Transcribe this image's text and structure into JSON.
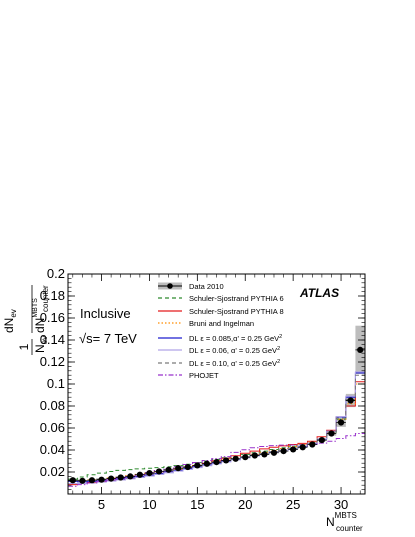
{
  "chart_data": {
    "type": "line",
    "xlabel_main": "N",
    "xlabel_sup": "MBTS",
    "xlabel_sub": "counter",
    "ylabel": {
      "frac1_num": "1",
      "frac1_den_main": "N",
      "frac1_den_sub": "ev",
      "frac2_num_main": "dN",
      "frac2_num_sub": "ev",
      "frac2_den_main": "dN",
      "frac2_den_sup": "MBTS",
      "frac2_den_sub": "counter"
    },
    "xlim": [
      1.5,
      32.5
    ],
    "ylim": [
      0,
      0.2
    ],
    "xticks": [
      5,
      10,
      15,
      20,
      25,
      30
    ],
    "xtick_labels": [
      "5",
      "10",
      "15",
      "20",
      "25",
      "30"
    ],
    "yticks": [
      0.02,
      0.04,
      0.06,
      0.08,
      0.1,
      0.12,
      0.14,
      0.16,
      0.18,
      0.2
    ],
    "ytick_labels": [
      "0.02",
      "0.04",
      "0.06",
      "0.08",
      "0.1",
      "0.12",
      "0.14",
      "0.16",
      "0.18",
      "0.2"
    ],
    "annotations": {
      "inclusive": "Inclusive",
      "sqrt": "√s",
      "energy": "= 7 TeV",
      "experiment": "ATLAS"
    },
    "legend_position": "top-right",
    "x": [
      2,
      3,
      4,
      5,
      6,
      7,
      8,
      9,
      10,
      11,
      12,
      13,
      14,
      15,
      16,
      17,
      18,
      19,
      20,
      21,
      22,
      23,
      24,
      25,
      26,
      27,
      28,
      29,
      30,
      31,
      32
    ],
    "data": {
      "name": "Data 2010",
      "color": "#000000",
      "values": [
        0.0125,
        0.012,
        0.0125,
        0.013,
        0.014,
        0.015,
        0.016,
        0.0175,
        0.019,
        0.0205,
        0.022,
        0.0235,
        0.0245,
        0.026,
        0.0275,
        0.029,
        0.0305,
        0.032,
        0.0335,
        0.035,
        0.036,
        0.0375,
        0.039,
        0.0405,
        0.0425,
        0.045,
        0.049,
        0.055,
        0.065,
        0.085,
        0.131
      ],
      "band": [
        0,
        0,
        0,
        0,
        0,
        0,
        0,
        0,
        0,
        0,
        0,
        0,
        0,
        0,
        0,
        0,
        0,
        0,
        0,
        0,
        0,
        0,
        0,
        0,
        0,
        0,
        0.001,
        0.002,
        0.004,
        0.006,
        0.022
      ]
    },
    "series": [
      {
        "name": "Schuler-Sjostrand PYTHIA 6",
        "color": "#2e8b2e",
        "dash": "4,3",
        "values": [
          0.0135,
          0.0155,
          0.0175,
          0.019,
          0.0205,
          0.0215,
          0.0222,
          0.0228,
          0.0234,
          0.024,
          0.0248,
          0.0258,
          0.027,
          0.0285,
          0.03,
          0.0315,
          0.033,
          0.0345,
          0.036,
          0.0375,
          0.039,
          0.0405,
          0.042,
          0.0435,
          0.045,
          0.047,
          0.05,
          0.056,
          0.068,
          0.085,
          0.1
        ]
      },
      {
        "name": "Schuler-Sjostrand PYTHIA 8",
        "color": "#e41a1c",
        "dash": "",
        "values": [
          0.0085,
          0.0095,
          0.0105,
          0.0115,
          0.0125,
          0.0135,
          0.0145,
          0.016,
          0.0175,
          0.019,
          0.0205,
          0.022,
          0.0238,
          0.0258,
          0.028,
          0.0302,
          0.0325,
          0.0348,
          0.037,
          0.039,
          0.041,
          0.0425,
          0.0438,
          0.045,
          0.046,
          0.048,
          0.052,
          0.058,
          0.07,
          0.08,
          0.102
        ]
      },
      {
        "name": "Bruni and Ingelman",
        "color": "#ff8c00",
        "dash": "1.5,2",
        "values": [
          0.0115,
          0.012,
          0.0128,
          0.0136,
          0.0145,
          0.0155,
          0.0166,
          0.0178,
          0.019,
          0.0203,
          0.0216,
          0.023,
          0.0245,
          0.026,
          0.0276,
          0.0292,
          0.0308,
          0.0325,
          0.0342,
          0.036,
          0.0378,
          0.0396,
          0.0414,
          0.0432,
          0.045,
          0.0472,
          0.0505,
          0.0565,
          0.068,
          0.082,
          0.1
        ]
      },
      {
        "name": "DL ε = 0.085,α' = 0.25 GeV",
        "color": "#1f1fcf",
        "dash": "",
        "values": [
          0.0115,
          0.011,
          0.0115,
          0.012,
          0.0128,
          0.0137,
          0.0148,
          0.016,
          0.0173,
          0.0187,
          0.0202,
          0.0217,
          0.0232,
          0.0248,
          0.0265,
          0.0282,
          0.03,
          0.0318,
          0.0335,
          0.0352,
          0.0368,
          0.0384,
          0.04,
          0.0416,
          0.0432,
          0.046,
          0.05,
          0.057,
          0.07,
          0.088,
          0.11
        ]
      },
      {
        "name": "DL ε = 0.06, α' = 0.25 GeV",
        "color": "#b0a3e6",
        "dash": "",
        "values": [
          0.0095,
          0.0095,
          0.01,
          0.0108,
          0.0117,
          0.0127,
          0.0138,
          0.015,
          0.0163,
          0.0177,
          0.0192,
          0.0208,
          0.0224,
          0.024,
          0.0257,
          0.0274,
          0.0292,
          0.031,
          0.0328,
          0.0346,
          0.0364,
          0.0382,
          0.04,
          0.0418,
          0.0436,
          0.0462,
          0.0502,
          0.0572,
          0.0705,
          0.089,
          0.111
        ]
      },
      {
        "name": "DL ε = 0.10, α' = 0.25 GeV",
        "color": "#7a7a7a",
        "dash": "4,3",
        "values": [
          0.0125,
          0.0125,
          0.013,
          0.0136,
          0.0144,
          0.0153,
          0.0163,
          0.0174,
          0.0186,
          0.0199,
          0.0213,
          0.0227,
          0.0242,
          0.0257,
          0.0273,
          0.0289,
          0.0305,
          0.0322,
          0.0338,
          0.0354,
          0.037,
          0.0386,
          0.0402,
          0.0418,
          0.0434,
          0.046,
          0.0498,
          0.0565,
          0.069,
          0.086,
          0.108
        ]
      },
      {
        "name": "PHOJET",
        "color": "#9932cc",
        "dash": "5,2,1.5,2",
        "values": [
          0.007,
          0.0085,
          0.01,
          0.0115,
          0.013,
          0.0145,
          0.016,
          0.0178,
          0.0196,
          0.0214,
          0.0232,
          0.025,
          0.0268,
          0.0286,
          0.0304,
          0.0322,
          0.034,
          0.0378,
          0.0402,
          0.042,
          0.0432,
          0.044,
          0.0444,
          0.0446,
          0.0448,
          0.045,
          0.0462,
          0.048,
          0.0505,
          0.053,
          0.055
        ]
      }
    ],
    "legend_sup": "2"
  }
}
